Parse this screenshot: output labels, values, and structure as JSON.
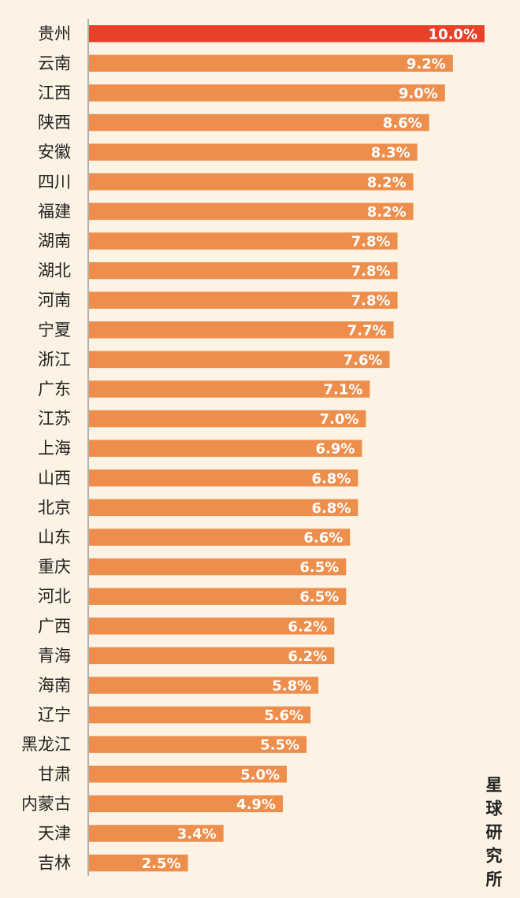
{
  "chart_data": {
    "type": "bar",
    "orientation": "horizontal",
    "title": "",
    "xlabel": "",
    "ylabel": "",
    "categories": [
      "贵州",
      "云南",
      "江西",
      "陕西",
      "安徽",
      "四川",
      "福建",
      "湖南",
      "湖北",
      "河南",
      "宁夏",
      "浙江",
      "广东",
      "江苏",
      "上海",
      "山西",
      "北京",
      "山东",
      "重庆",
      "河北",
      "广西",
      "青海",
      "海南",
      "辽宁",
      "黑龙江",
      "甘肃",
      "内蒙古",
      "天津",
      "吉林"
    ],
    "values": [
      10.0,
      9.2,
      9.0,
      8.6,
      8.3,
      8.2,
      8.2,
      7.8,
      7.8,
      7.8,
      7.7,
      7.6,
      7.1,
      7.0,
      6.9,
      6.8,
      6.8,
      6.6,
      6.5,
      6.5,
      6.2,
      6.2,
      5.8,
      5.6,
      5.5,
      5.0,
      4.9,
      3.4,
      2.5
    ],
    "value_labels": [
      "10.0%",
      "9.2%",
      "9.0%",
      "8.6%",
      "8.3%",
      "8.2%",
      "8.2%",
      "7.8%",
      "7.8%",
      "7.8%",
      "7.7%",
      "7.6%",
      "7.1%",
      "7.0%",
      "6.9%",
      "6.8%",
      "6.8%",
      "6.6%",
      "6.5%",
      "6.5%",
      "6.2%",
      "6.2%",
      "5.8%",
      "5.6%",
      "5.5%",
      "5.0%",
      "4.9%",
      "3.4%",
      "2.5%"
    ],
    "xlim": [
      0,
      10.0
    ],
    "grid": false,
    "highlight_index": 0,
    "colors": {
      "highlight": "#e8412a",
      "bar": "#ee8e4c",
      "axis": "#9a9a9a"
    }
  },
  "watermark": "星球研究所"
}
